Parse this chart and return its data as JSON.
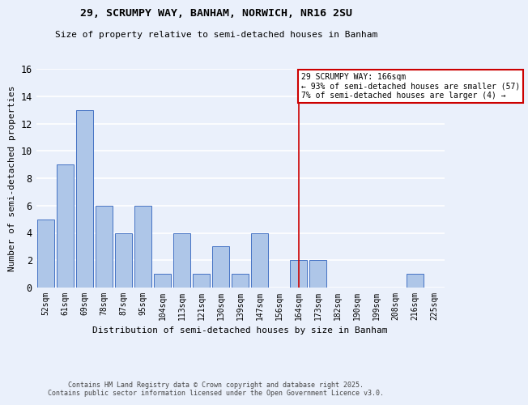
{
  "title1": "29, SCRUMPY WAY, BANHAM, NORWICH, NR16 2SU",
  "title2": "Size of property relative to semi-detached houses in Banham",
  "xlabel": "Distribution of semi-detached houses by size in Banham",
  "ylabel": "Number of semi-detached properties",
  "categories": [
    "52sqm",
    "61sqm",
    "69sqm",
    "78sqm",
    "87sqm",
    "95sqm",
    "104sqm",
    "113sqm",
    "121sqm",
    "130sqm",
    "139sqm",
    "147sqm",
    "156sqm",
    "164sqm",
    "173sqm",
    "182sqm",
    "190sqm",
    "199sqm",
    "208sqm",
    "216sqm",
    "225sqm"
  ],
  "values": [
    5,
    9,
    13,
    6,
    4,
    6,
    1,
    4,
    1,
    3,
    1,
    4,
    0,
    2,
    2,
    0,
    0,
    0,
    0,
    1,
    0
  ],
  "bar_color": "#aec6e8",
  "bar_edge_color": "#4472c4",
  "bg_color": "#eaf0fb",
  "grid_color": "#ffffff",
  "vline_x_index": 13,
  "vline_color": "#cc0000",
  "annotation_lines": [
    "29 SCRUMPY WAY: 166sqm",
    "← 93% of semi-detached houses are smaller (57)",
    "7% of semi-detached houses are larger (4) →"
  ],
  "ylim": [
    0,
    16
  ],
  "yticks": [
    0,
    2,
    4,
    6,
    8,
    10,
    12,
    14,
    16
  ],
  "footer1": "Contains HM Land Registry data © Crown copyright and database right 2025.",
  "footer2": "Contains public sector information licensed under the Open Government Licence v3.0."
}
